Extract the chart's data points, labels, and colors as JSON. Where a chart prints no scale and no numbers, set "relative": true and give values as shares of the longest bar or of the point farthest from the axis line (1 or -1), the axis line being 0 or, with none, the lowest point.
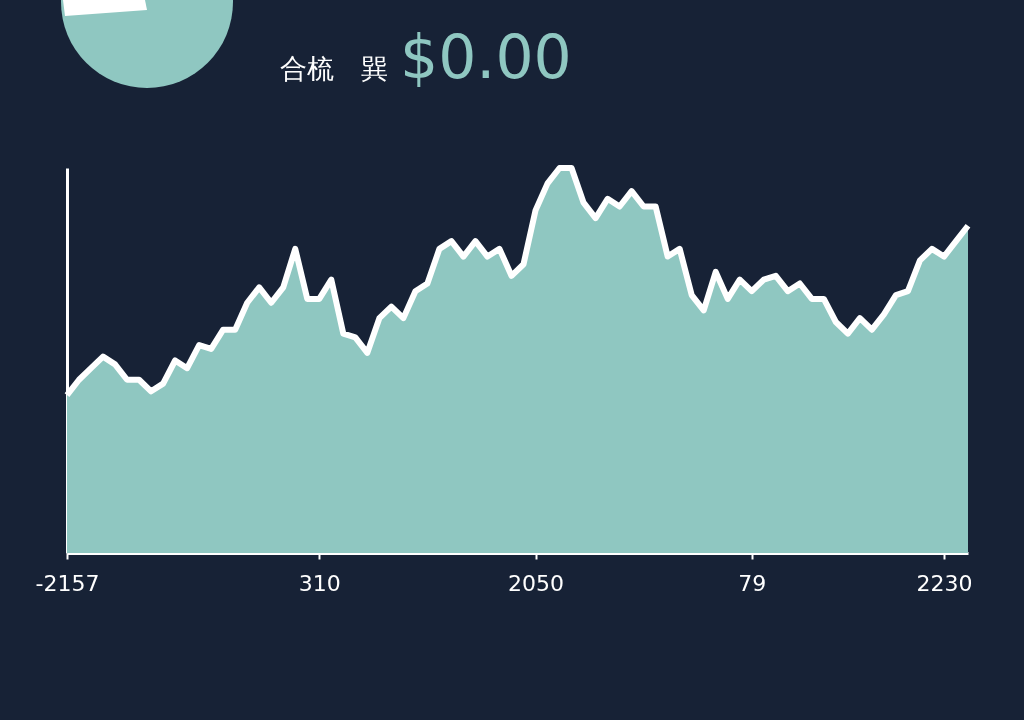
{
  "chart_data": {
    "type": "area",
    "title": "合梳　巽",
    "subtitle": "$0.00",
    "relative": true,
    "categories": [
      "-2157",
      null,
      null,
      null,
      null,
      null,
      null,
      null,
      null,
      null,
      null,
      null,
      null,
      null,
      null,
      null,
      null,
      null,
      null,
      null,
      null,
      "310",
      null,
      null,
      null,
      null,
      null,
      null,
      null,
      null,
      null,
      null,
      null,
      null,
      null,
      null,
      null,
      null,
      null,
      "2050",
      null,
      null,
      null,
      null,
      null,
      null,
      null,
      null,
      null,
      null,
      null,
      null,
      null,
      null,
      null,
      null,
      null,
      "79",
      null,
      null,
      null,
      null,
      null,
      null,
      null,
      null,
      null,
      null,
      null,
      null,
      null,
      null,
      null,
      "2230",
      null,
      null
    ],
    "series": [
      {
        "color": "#8fc7c1",
        "values": [
          0.41,
          0.45,
          0.48,
          0.51,
          0.49,
          0.45,
          0.45,
          0.42,
          0.44,
          0.5,
          0.48,
          0.54,
          0.53,
          0.58,
          0.58,
          0.65,
          0.69,
          0.65,
          0.69,
          0.79,
          0.66,
          0.66,
          0.71,
          0.57,
          0.56,
          0.52,
          0.61,
          0.64,
          0.61,
          0.68,
          0.7,
          0.79,
          0.81,
          0.77,
          0.81,
          0.77,
          0.79,
          0.72,
          0.75,
          0.89,
          0.96,
          1.0,
          1.0,
          0.91,
          0.87,
          0.92,
          0.9,
          0.94,
          0.9,
          0.9,
          0.77,
          0.79,
          0.67,
          0.63,
          0.73,
          0.66,
          0.71,
          0.68,
          0.71,
          0.72,
          0.68,
          0.7,
          0.66,
          0.66,
          0.6,
          0.57,
          0.61,
          0.58,
          0.62,
          0.67,
          0.68,
          0.76,
          0.79,
          0.77,
          0.81,
          0.85
        ]
      }
    ]
  }
}
